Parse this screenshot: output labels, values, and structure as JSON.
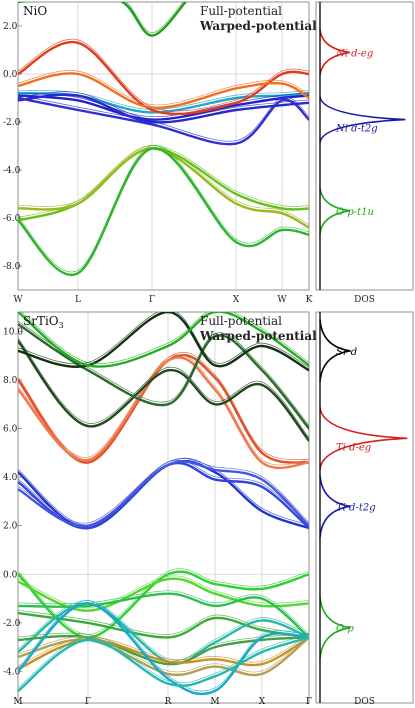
{
  "chart_data": [
    {
      "type": "line",
      "material": "NiO",
      "legend": [
        "Full-potential",
        "Warped-potential"
      ],
      "kpath": [
        "W",
        "L",
        "Γ",
        "X",
        "W",
        "K"
      ],
      "yticks": [
        "2.0",
        "0.0",
        "-2.0",
        "-4.0",
        "-6.0",
        "-8.0"
      ],
      "ylim": [
        -9.0,
        3.0
      ],
      "dos_label": "DOS",
      "dos_annotations": [
        {
          "text": "Ni d-eg",
          "color": "#d42020",
          "energy": 0.9
        },
        {
          "text": "Ni d-t2g",
          "color": "#1a1aa8",
          "energy": -1.9
        },
        {
          "text": "O p-t1u",
          "color": "#22aa22",
          "energy": -5.7
        }
      ],
      "series": [
        {
          "color": "#22a7c9",
          "x": [
            0,
            1,
            2,
            3,
            4,
            5
          ],
          "y": [
            -0.8,
            -0.9,
            -1.6,
            -1.0,
            -0.9,
            -0.8
          ]
        },
        {
          "color": "#2222cc",
          "x": [
            0,
            1,
            2,
            3,
            4,
            5
          ],
          "y": [
            -0.9,
            -1.1,
            -1.9,
            -1.3,
            -1.0,
            -0.9
          ]
        },
        {
          "color": "#3030d0",
          "x": [
            0,
            1,
            2,
            3,
            4,
            5
          ],
          "y": [
            -1.0,
            -1.5,
            -2.1,
            -2.9,
            -1.1,
            -1.9
          ]
        },
        {
          "color": "#2a2ac8",
          "x": [
            0,
            1,
            2,
            3,
            4,
            5
          ],
          "y": [
            -1.1,
            -0.9,
            -2.0,
            -1.5,
            -1.3,
            -1.2
          ]
        },
        {
          "color": "#e03c1c",
          "x": [
            0,
            1,
            2,
            3,
            4,
            5
          ],
          "y": [
            0.0,
            1.3,
            -1.5,
            -1.2,
            0.0,
            0.0
          ]
        },
        {
          "color": "#f07020",
          "x": [
            0,
            1,
            2,
            3,
            4,
            5
          ],
          "y": [
            -0.5,
            0.0,
            -1.4,
            -0.6,
            -0.4,
            -1.0
          ]
        },
        {
          "color": "#1ea01e",
          "x": [
            0,
            1,
            1.6,
            2,
            2.4
          ],
          "y": [
            3.0,
            3.2,
            3.0,
            1.6,
            3.0
          ]
        },
        {
          "color": "#66c21a",
          "x": [
            0,
            1,
            2,
            3,
            4,
            5
          ],
          "y": [
            -6.1,
            -5.4,
            -3.1,
            -5.0,
            -5.6,
            -5.6
          ]
        },
        {
          "color": "#9ab820",
          "x": [
            0,
            1,
            2,
            3,
            4,
            5
          ],
          "y": [
            -5.6,
            -5.4,
            -3.1,
            -5.4,
            -5.8,
            -6.4
          ]
        },
        {
          "color": "#2fb52f",
          "x": [
            0,
            1,
            2,
            3,
            4,
            5
          ],
          "y": [
            -6.1,
            -8.3,
            -3.1,
            -7.0,
            -6.5,
            -6.7
          ]
        }
      ]
    },
    {
      "type": "line",
      "material": "SrTiO3",
      "legend": [
        "Full-potential",
        "Warped-potential"
      ],
      "kpath": [
        "M",
        "Γ",
        "R",
        "M",
        "X",
        "Γ"
      ],
      "yticks": [
        "10.0",
        "8.0",
        "6.0",
        "4.0",
        "2.0",
        "0.0",
        "-2.0",
        "-4.0"
      ],
      "ylim": [
        -5.3,
        10.8
      ],
      "dos_label": "DOS",
      "dos_annotations": [
        {
          "text": "Sr d",
          "color": "#000000",
          "energy": 9.2
        },
        {
          "text": "Ti d-eg",
          "color": "#d42020",
          "energy": 5.6
        },
        {
          "text": "Ti d-t2g",
          "color": "#1a1aa8",
          "energy": 2.8
        },
        {
          "text": "O p",
          "color": "#22aa22",
          "energy": -2.2
        }
      ],
      "series": [
        {
          "color": "#e0502a",
          "x": [
            0,
            1,
            2,
            3,
            4,
            5
          ],
          "y": [
            8.0,
            4.6,
            8.8,
            8.1,
            5.0,
            4.6
          ]
        },
        {
          "color": "#f07a50",
          "x": [
            0,
            1,
            2,
            3,
            4,
            5
          ],
          "y": [
            7.6,
            4.7,
            8.8,
            7.6,
            4.6,
            4.6
          ]
        },
        {
          "color": "#1e4a1e",
          "x": [
            0,
            1,
            2,
            3,
            4,
            5
          ],
          "y": [
            9.6,
            6.1,
            8.4,
            7.0,
            7.8,
            5.5
          ]
        },
        {
          "color": "#2a6a2a",
          "x": [
            0,
            1,
            2,
            3,
            4,
            5
          ],
          "y": [
            10.3,
            8.4,
            7.0,
            9.8,
            8.4,
            6.0
          ]
        },
        {
          "color": "#113311",
          "x": [
            0,
            1,
            2,
            3,
            4,
            5
          ],
          "y": [
            9.2,
            8.6,
            10.8,
            8.6,
            9.4,
            8.4
          ]
        },
        {
          "color": "#22b022",
          "x": [
            0,
            1,
            2,
            3,
            4,
            5
          ],
          "y": [
            10.8,
            8.6,
            9.4,
            10.8,
            10.0,
            8.6
          ]
        },
        {
          "color": "#2233cc",
          "x": [
            0,
            1,
            2,
            3,
            4,
            5
          ],
          "y": [
            4.2,
            1.9,
            4.5,
            4.2,
            2.6,
            1.9
          ]
        },
        {
          "color": "#3344dd",
          "x": [
            0,
            1,
            2,
            3,
            4,
            5
          ],
          "y": [
            3.8,
            1.9,
            4.5,
            3.9,
            3.6,
            1.9
          ]
        },
        {
          "color": "#4455e0",
          "x": [
            0,
            1,
            2,
            3,
            4,
            5
          ],
          "y": [
            3.5,
            2.0,
            4.5,
            4.3,
            3.9,
            2.0
          ]
        },
        {
          "color": "#30d030",
          "x": [
            0,
            1,
            2,
            3,
            4,
            5
          ],
          "y": [
            0.0,
            -2.6,
            0.0,
            -0.4,
            -0.6,
            0.0
          ]
        },
        {
          "color": "#50d830",
          "x": [
            0,
            1,
            2,
            3,
            4,
            5
          ],
          "y": [
            -0.3,
            -1.5,
            -0.2,
            -0.8,
            -1.3,
            -1.2
          ]
        },
        {
          "color": "#2cbf4c",
          "x": [
            0,
            1,
            2,
            3,
            4,
            5
          ],
          "y": [
            -1.3,
            -1.3,
            -0.8,
            -1.3,
            -1.0,
            -2.6
          ]
        },
        {
          "color": "#3aaa3a",
          "x": [
            0,
            1,
            2,
            3,
            4,
            5
          ],
          "y": [
            -1.6,
            -2.0,
            -2.6,
            -1.8,
            -2.3,
            -2.6
          ]
        },
        {
          "color": "#2ab8a8",
          "x": [
            0,
            1,
            2,
            3,
            4,
            5
          ],
          "y": [
            -3.2,
            -1.2,
            -3.6,
            -2.8,
            -1.9,
            -2.6
          ]
        },
        {
          "color": "#44a044",
          "x": [
            0,
            1,
            2,
            3,
            4,
            5
          ],
          "y": [
            -2.7,
            -2.6,
            -3.7,
            -3.0,
            -2.7,
            -2.6
          ]
        },
        {
          "color": "#c89020",
          "x": [
            0,
            1,
            2,
            3,
            4,
            5
          ],
          "y": [
            -3.9,
            -2.7,
            -3.6,
            -3.5,
            -3.7,
            -2.6
          ]
        },
        {
          "color": "#b0a050",
          "x": [
            0,
            1,
            2,
            3,
            4,
            5
          ],
          "y": [
            -3.4,
            -2.7,
            -4.1,
            -3.8,
            -4.1,
            -2.6
          ]
        },
        {
          "color": "#1aa8c8",
          "x": [
            0,
            1,
            2,
            3,
            4,
            5
          ],
          "y": [
            -4.0,
            -1.2,
            -4.3,
            -4.8,
            -2.6,
            -2.6
          ]
        },
        {
          "color": "#20b8b0",
          "x": [
            0,
            1,
            2,
            3,
            4,
            5
          ],
          "y": [
            -4.8,
            -2.7,
            -4.5,
            -4.2,
            -3.2,
            -2.6
          ]
        }
      ]
    }
  ]
}
